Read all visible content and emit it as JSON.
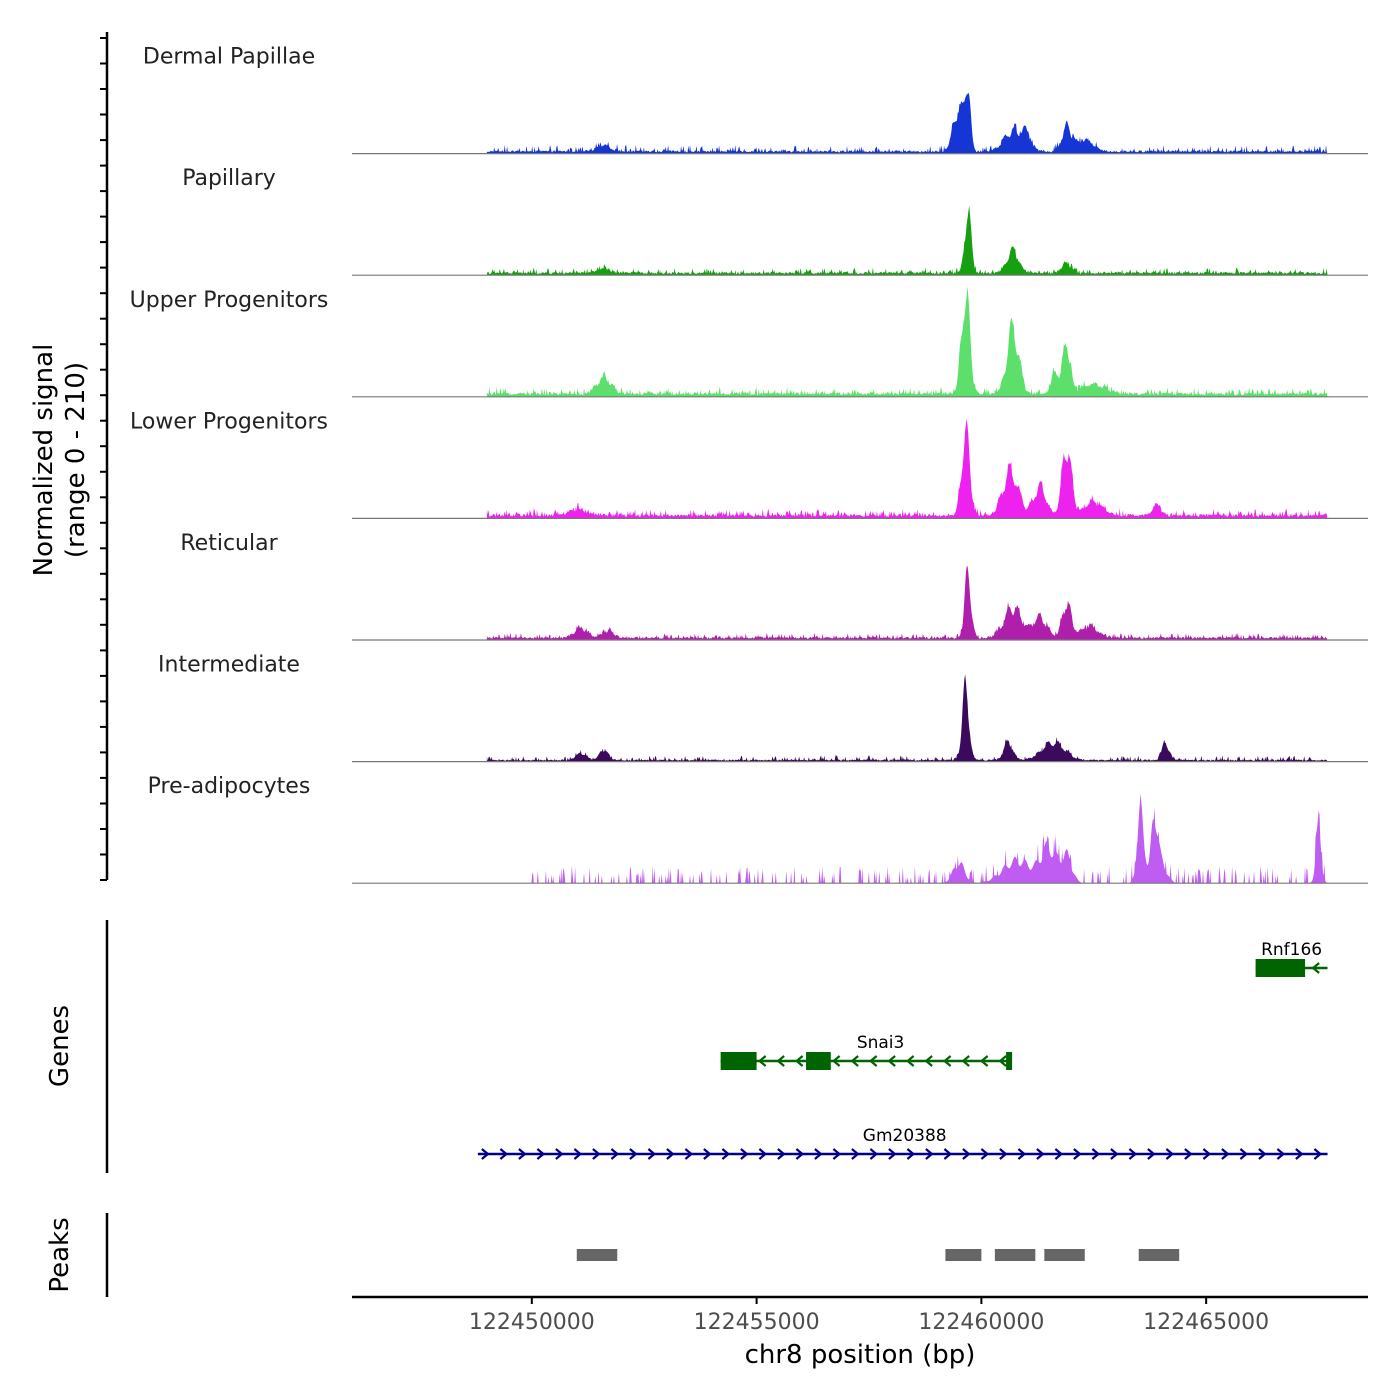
{
  "chart_data": {
    "type": "area",
    "title": "",
    "ylabel_line1": "Normalized signal",
    "ylabel_line2": "(range 0 - 210)",
    "xlabel": "chr8 position (bp)",
    "xlim": [
      122446000,
      122468600
    ],
    "ylim": [
      0,
      210
    ],
    "x_ticks": [
      122450000,
      122455000,
      122460000,
      122465000
    ],
    "x_tick_labels": [
      "122450000",
      "122455000",
      "122460000",
      "122465000"
    ],
    "signal_extent": [
      122449000,
      122467700
    ],
    "tracks": [
      {
        "name": "Dermal Papillae",
        "color": "#1536d4",
        "baseline": 3,
        "noise_amp": 4,
        "noise_from": 122449000,
        "noise_to": 122467700,
        "peaks": [
          {
            "x": 122451600,
            "h": 8,
            "w": 150
          },
          {
            "x": 122459500,
            "h": 55,
            "w": 120
          },
          {
            "x": 122459700,
            "h": 80,
            "w": 55
          },
          {
            "x": 122460700,
            "h": 25,
            "w": 200
          },
          {
            "x": 122461000,
            "h": 18,
            "w": 100
          },
          {
            "x": 122461900,
            "h": 30,
            "w": 110
          },
          {
            "x": 122462300,
            "h": 14,
            "w": 180
          }
        ]
      },
      {
        "name": "Papillary",
        "color": "#16a011",
        "baseline": 3,
        "noise_amp": 3,
        "noise_from": 122449000,
        "noise_to": 122467700,
        "peaks": [
          {
            "x": 122451600,
            "h": 6,
            "w": 140
          },
          {
            "x": 122459700,
            "h": 78,
            "w": 70
          },
          {
            "x": 122460700,
            "h": 28,
            "w": 130
          },
          {
            "x": 122461900,
            "h": 12,
            "w": 110
          }
        ]
      },
      {
        "name": "Upper Progenitors",
        "color": "#5de06b",
        "baseline": 4,
        "noise_amp": 4,
        "noise_from": 122449000,
        "noise_to": 122467700,
        "peaks": [
          {
            "x": 122451600,
            "h": 20,
            "w": 160
          },
          {
            "x": 122459650,
            "h": 128,
            "w": 90
          },
          {
            "x": 122460700,
            "h": 82,
            "w": 130
          },
          {
            "x": 122461650,
            "h": 28,
            "w": 90
          },
          {
            "x": 122461900,
            "h": 62,
            "w": 80
          },
          {
            "x": 122462500,
            "h": 12,
            "w": 260
          }
        ]
      },
      {
        "name": "Lower Progenitors",
        "color": "#ee22ee",
        "baseline": 4,
        "noise_amp": 4,
        "noise_from": 122449000,
        "noise_to": 122467700,
        "peaks": [
          {
            "x": 122451000,
            "h": 8,
            "w": 200
          },
          {
            "x": 122459650,
            "h": 105,
            "w": 90
          },
          {
            "x": 122460650,
            "h": 55,
            "w": 170
          },
          {
            "x": 122461300,
            "h": 35,
            "w": 140
          },
          {
            "x": 122461900,
            "h": 88,
            "w": 100
          },
          {
            "x": 122462500,
            "h": 16,
            "w": 200
          },
          {
            "x": 122463900,
            "h": 12,
            "w": 100
          }
        ]
      },
      {
        "name": "Reticular",
        "color": "#b01fac",
        "baseline": 3,
        "noise_amp": 3,
        "noise_from": 122449000,
        "noise_to": 122467700,
        "peaks": [
          {
            "x": 122451100,
            "h": 12,
            "w": 150
          },
          {
            "x": 122451700,
            "h": 9,
            "w": 120
          },
          {
            "x": 122459700,
            "h": 82,
            "w": 70
          },
          {
            "x": 122460700,
            "h": 38,
            "w": 190
          },
          {
            "x": 122461300,
            "h": 25,
            "w": 160
          },
          {
            "x": 122461900,
            "h": 42,
            "w": 100
          },
          {
            "x": 122462400,
            "h": 15,
            "w": 180
          }
        ]
      },
      {
        "name": "Intermediate",
        "color": "#3b0a5c",
        "baseline": 2,
        "noise_amp": 3,
        "noise_from": 122449000,
        "noise_to": 122467700,
        "peaks": [
          {
            "x": 122451100,
            "h": 9,
            "w": 110
          },
          {
            "x": 122451600,
            "h": 14,
            "w": 90
          },
          {
            "x": 122459650,
            "h": 90,
            "w": 75
          },
          {
            "x": 122460600,
            "h": 22,
            "w": 100
          },
          {
            "x": 122461600,
            "h": 22,
            "w": 250
          },
          {
            "x": 122464100,
            "h": 22,
            "w": 80
          }
        ]
      },
      {
        "name": "Pre-adipocytes",
        "color": "#bf5cf2",
        "baseline": 0,
        "noise_amp": 12,
        "noise_from": 122450000,
        "noise_to": 122467700,
        "peaks": [
          {
            "x": 122459500,
            "h": 25,
            "w": 130
          },
          {
            "x": 122460800,
            "h": 28,
            "w": 320
          },
          {
            "x": 122461500,
            "h": 42,
            "w": 180
          },
          {
            "x": 122461900,
            "h": 32,
            "w": 120
          },
          {
            "x": 122463550,
            "h": 88,
            "w": 80
          },
          {
            "x": 122463850,
            "h": 78,
            "w": 70
          },
          {
            "x": 122464000,
            "h": 25,
            "w": 120
          },
          {
            "x": 122467500,
            "h": 68,
            "w": 60
          }
        ]
      }
    ],
    "genes_label": "Genes",
    "genes": [
      {
        "name": "Rnf166",
        "strand": "-",
        "color": "#006400",
        "start": 122466100,
        "end": 122467700,
        "exons": [
          [
            122466100,
            122467200
          ]
        ]
      },
      {
        "name": "Snai3",
        "strand": "-",
        "color": "#006400",
        "start": 122454200,
        "end": 122460650,
        "exons": [
          [
            122454200,
            122455000
          ],
          [
            122456100,
            122456650
          ],
          [
            122460550,
            122460650
          ]
        ]
      },
      {
        "name": "Gm20388",
        "strand": "+",
        "color": "#00008b",
        "start": 122448800,
        "end": 122467700,
        "exons": []
      }
    ],
    "peaks_label": "Peaks",
    "peaks_color": "#666666",
    "peaks": [
      [
        122451000,
        122451900
      ],
      [
        122459200,
        122460000
      ],
      [
        122460300,
        122461200
      ],
      [
        122461400,
        122462300
      ],
      [
        122463500,
        122464400
      ]
    ]
  }
}
